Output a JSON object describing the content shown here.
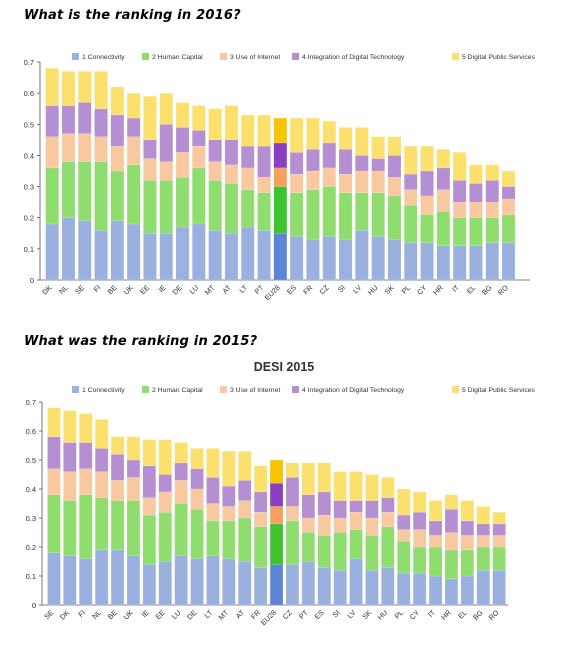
{
  "headings": {
    "h2016": "What is the ranking in 2016?",
    "h2015": "What was the ranking in 2015?"
  },
  "colors": {
    "connectivity": "#9ab1e0",
    "human_capital": "#8fdc6f",
    "use_of_internet": "#f8c8a0",
    "integration": "#b48fd2",
    "digital_public_services": "#fbe06e",
    "highlight": [
      "#5c85d6",
      "#3ec42e",
      "#f6a060",
      "#8a3fc2",
      "#f7c400"
    ]
  },
  "chart_data": [
    {
      "type": "bar",
      "stacked": true,
      "title": "",
      "xlabel": "",
      "ylabel": "",
      "ylim": [
        0,
        0.7
      ],
      "yticks": [
        "0",
        "0.1",
        "0.2",
        "0.3",
        "0.4",
        "0.5",
        "0.6",
        "0.7"
      ],
      "grid": false,
      "legend_position": "top",
      "highlight_category": "EU28",
      "categories": [
        "DK",
        "NL",
        "SE",
        "FI",
        "BE",
        "UK",
        "EE",
        "IE",
        "DE",
        "LU",
        "MT",
        "AT",
        "LT",
        "PT",
        "EU28",
        "ES",
        "FR",
        "CZ",
        "SI",
        "LV",
        "HU",
        "SK",
        "PL",
        "CY",
        "HR",
        "IT",
        "EL",
        "BG",
        "RO"
      ],
      "series": [
        {
          "name": "1 Connectivity",
          "values": [
            0.18,
            0.2,
            0.19,
            0.16,
            0.19,
            0.18,
            0.15,
            0.15,
            0.17,
            0.18,
            0.16,
            0.15,
            0.17,
            0.16,
            0.15,
            0.14,
            0.13,
            0.14,
            0.13,
            0.16,
            0.14,
            0.13,
            0.12,
            0.12,
            0.11,
            0.11,
            0.11,
            0.12,
            0.12
          ]
        },
        {
          "name": "2 Human Capital",
          "values": [
            0.18,
            0.18,
            0.19,
            0.22,
            0.16,
            0.19,
            0.17,
            0.17,
            0.16,
            0.18,
            0.16,
            0.16,
            0.12,
            0.12,
            0.15,
            0.14,
            0.16,
            0.16,
            0.15,
            0.12,
            0.14,
            0.14,
            0.12,
            0.09,
            0.11,
            0.09,
            0.09,
            0.08,
            0.09
          ]
        },
        {
          "name": "3 Use of Internet",
          "values": [
            0.1,
            0.09,
            0.09,
            0.08,
            0.08,
            0.09,
            0.07,
            0.06,
            0.08,
            0.07,
            0.06,
            0.06,
            0.07,
            0.05,
            0.06,
            0.06,
            0.06,
            0.06,
            0.06,
            0.07,
            0.07,
            0.06,
            0.05,
            0.06,
            0.07,
            0.05,
            0.05,
            0.05,
            0.05
          ]
        },
        {
          "name": "4 Integration of Digital Technology",
          "values": [
            0.1,
            0.09,
            0.1,
            0.09,
            0.1,
            0.06,
            0.06,
            0.12,
            0.08,
            0.05,
            0.07,
            0.08,
            0.07,
            0.1,
            0.08,
            0.07,
            0.07,
            0.08,
            0.08,
            0.05,
            0.04,
            0.07,
            0.05,
            0.08,
            0.07,
            0.07,
            0.06,
            0.07,
            0.04
          ]
        },
        {
          "name": "5 Digital Public Services",
          "values": [
            0.12,
            0.11,
            0.1,
            0.12,
            0.09,
            0.08,
            0.14,
            0.1,
            0.08,
            0.08,
            0.1,
            0.11,
            0.1,
            0.1,
            0.08,
            0.11,
            0.1,
            0.07,
            0.07,
            0.09,
            0.07,
            0.06,
            0.09,
            0.08,
            0.06,
            0.09,
            0.06,
            0.05,
            0.05
          ]
        }
      ]
    },
    {
      "type": "bar",
      "stacked": true,
      "title": "DESI 2015",
      "xlabel": "",
      "ylabel": "",
      "ylim": [
        0,
        0.7
      ],
      "yticks": [
        "0",
        "0.1",
        "0.2",
        "0.3",
        "0.4",
        "0.5",
        "0.6",
        "0.7"
      ],
      "grid": false,
      "legend_position": "top",
      "highlight_category": "EU28",
      "categories": [
        "SE",
        "DK",
        "FI",
        "NL",
        "BE",
        "UK",
        "IE",
        "EE",
        "LU",
        "DE",
        "LT",
        "MT",
        "AT",
        "FR",
        "EU28",
        "CZ",
        "PT",
        "ES",
        "SI",
        "LV",
        "SK",
        "HU",
        "PL",
        "CY",
        "IT",
        "HR",
        "EL",
        "BG",
        "RO"
      ],
      "series": [
        {
          "name": "1 Connectivity",
          "values": [
            0.18,
            0.17,
            0.16,
            0.19,
            0.19,
            0.17,
            0.14,
            0.15,
            0.17,
            0.16,
            0.17,
            0.16,
            0.15,
            0.13,
            0.14,
            0.14,
            0.15,
            0.13,
            0.12,
            0.16,
            0.12,
            0.13,
            0.11,
            0.11,
            0.1,
            0.09,
            0.1,
            0.12,
            0.12
          ]
        },
        {
          "name": "2 Human Capital",
          "values": [
            0.2,
            0.19,
            0.22,
            0.18,
            0.17,
            0.19,
            0.17,
            0.17,
            0.18,
            0.17,
            0.12,
            0.13,
            0.15,
            0.14,
            0.14,
            0.15,
            0.1,
            0.11,
            0.13,
            0.1,
            0.12,
            0.14,
            0.11,
            0.09,
            0.1,
            0.1,
            0.09,
            0.08,
            0.08
          ]
        },
        {
          "name": "3 Use of Internet",
          "values": [
            0.09,
            0.1,
            0.09,
            0.09,
            0.07,
            0.08,
            0.06,
            0.07,
            0.08,
            0.07,
            0.06,
            0.05,
            0.06,
            0.05,
            0.06,
            0.05,
            0.05,
            0.07,
            0.05,
            0.06,
            0.06,
            0.05,
            0.04,
            0.06,
            0.04,
            0.06,
            0.05,
            0.04,
            0.04
          ]
        },
        {
          "name": "4 Integration of Digital Technology",
          "values": [
            0.11,
            0.1,
            0.09,
            0.08,
            0.09,
            0.06,
            0.11,
            0.06,
            0.06,
            0.07,
            0.09,
            0.07,
            0.07,
            0.07,
            0.08,
            0.1,
            0.08,
            0.08,
            0.06,
            0.04,
            0.06,
            0.05,
            0.05,
            0.06,
            0.05,
            0.08,
            0.05,
            0.04,
            0.04
          ]
        },
        {
          "name": "5 Digital Public Services",
          "values": [
            0.1,
            0.11,
            0.1,
            0.1,
            0.06,
            0.08,
            0.09,
            0.12,
            0.07,
            0.07,
            0.1,
            0.12,
            0.1,
            0.09,
            0.08,
            0.05,
            0.11,
            0.1,
            0.1,
            0.1,
            0.09,
            0.07,
            0.09,
            0.07,
            0.07,
            0.05,
            0.07,
            0.06,
            0.04
          ]
        }
      ]
    }
  ]
}
